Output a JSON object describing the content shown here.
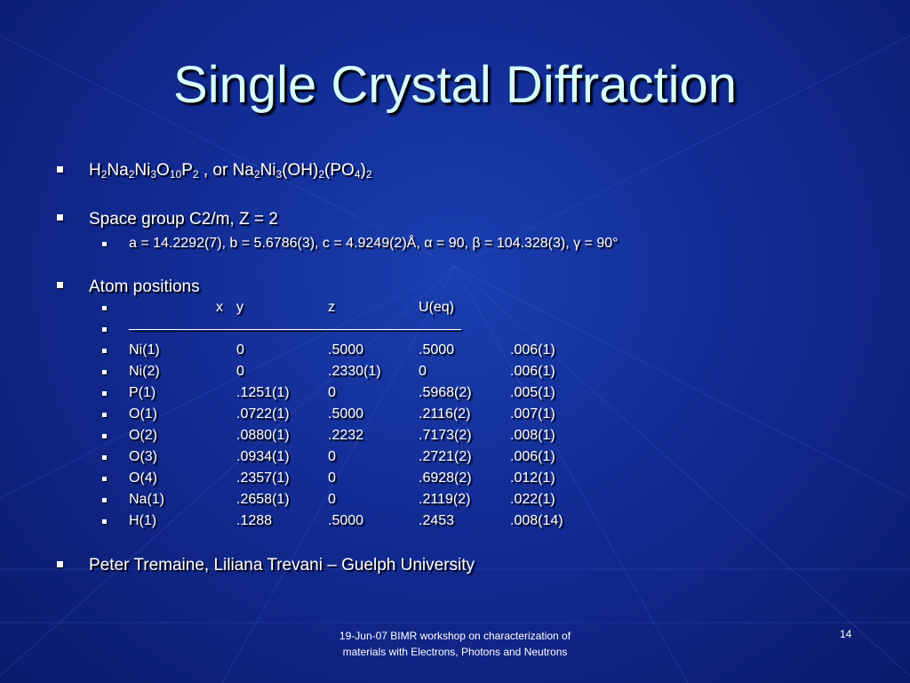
{
  "title": "Single Crystal Diffraction",
  "formula": {
    "parts": [
      "H",
      "2",
      "Na",
      "2",
      "Ni",
      "3",
      "O",
      "10",
      "P",
      "2",
      " , or Na",
      "2",
      "Ni",
      "3",
      "(OH)",
      "2",
      "(PO",
      "4",
      ")",
      "2"
    ]
  },
  "space_group": "Space group C2/m, Z = 2",
  "cell": "a = 14.2292(7), b = 5.6786(3), c = 4.9249(2)Å, α = 90, β = 104.328(3), γ = 90°",
  "atoms": {
    "heading": "Atom positions",
    "header": [
      "x",
      "y",
      "z",
      "U(eq)"
    ],
    "rule": "__________________________________________",
    "rows": [
      [
        "Ni(1)",
        "0",
        ".5000",
        ".5000",
        ".006(1)"
      ],
      [
        "Ni(2)",
        "0",
        ".2330(1)",
        "0",
        ".006(1)"
      ],
      [
        "P(1)",
        ".1251(1)",
        "0",
        ".5968(2)",
        ".005(1)"
      ],
      [
        "O(1)",
        ".0722(1)",
        ".5000",
        ".2116(2)",
        ".007(1)"
      ],
      [
        "O(2)",
        ".0880(1)",
        ".2232",
        ".7173(2)",
        ".008(1)"
      ],
      [
        "O(3)",
        ".0934(1)",
        "0",
        ".2721(2)",
        ".006(1)"
      ],
      [
        "O(4)",
        ".2357(1)",
        "0",
        ".6928(2)",
        ".012(1)"
      ],
      [
        "Na(1)",
        ".2658(1)",
        "0",
        ".2119(2)",
        ".022(1)"
      ],
      [
        "H(1)",
        ".1288",
        ".5000",
        ".2453",
        ".008(14)"
      ]
    ]
  },
  "credit": "Peter Tremaine, Liliana Trevani – Guelph University",
  "footer": "19-Jun-07 BIMR workshop on characterization of materials with Electrons, Photons and Neutrons",
  "page_number": "14"
}
